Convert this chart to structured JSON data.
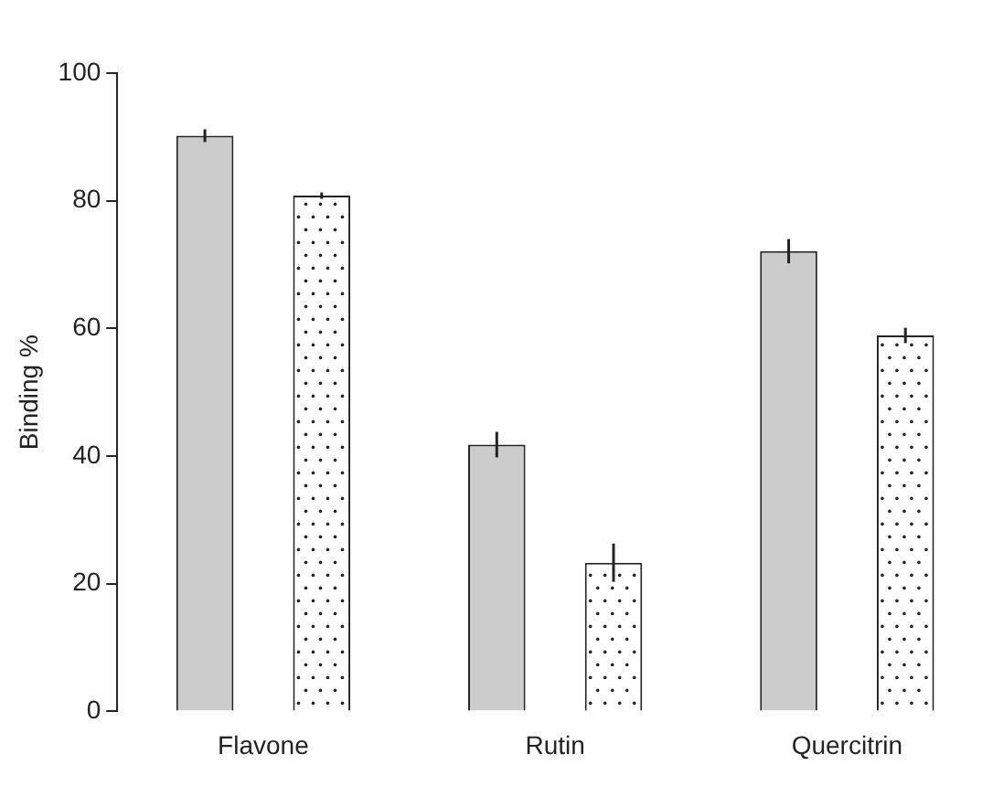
{
  "chart_data": {
    "type": "bar",
    "ylabel": "Binding %",
    "categories": [
      "Flavone",
      "Rutin",
      "Quercitrin"
    ],
    "series": [
      {
        "color": "#cccccc",
        "values": [
          90.2,
          41.8,
          72.1
        ],
        "errors": [
          1,
          2,
          1.9
        ]
      },
      {
        "color": "#ffffff",
        "values": [
          80.8,
          23.3,
          58.9
        ],
        "errors": [
          0.5,
          3,
          1.2
        ]
      }
    ],
    "ylim": [
      0,
      100
    ],
    "yticks": [
      0,
      20,
      40,
      60,
      80,
      100
    ],
    "grid": false,
    "legend": false
  }
}
